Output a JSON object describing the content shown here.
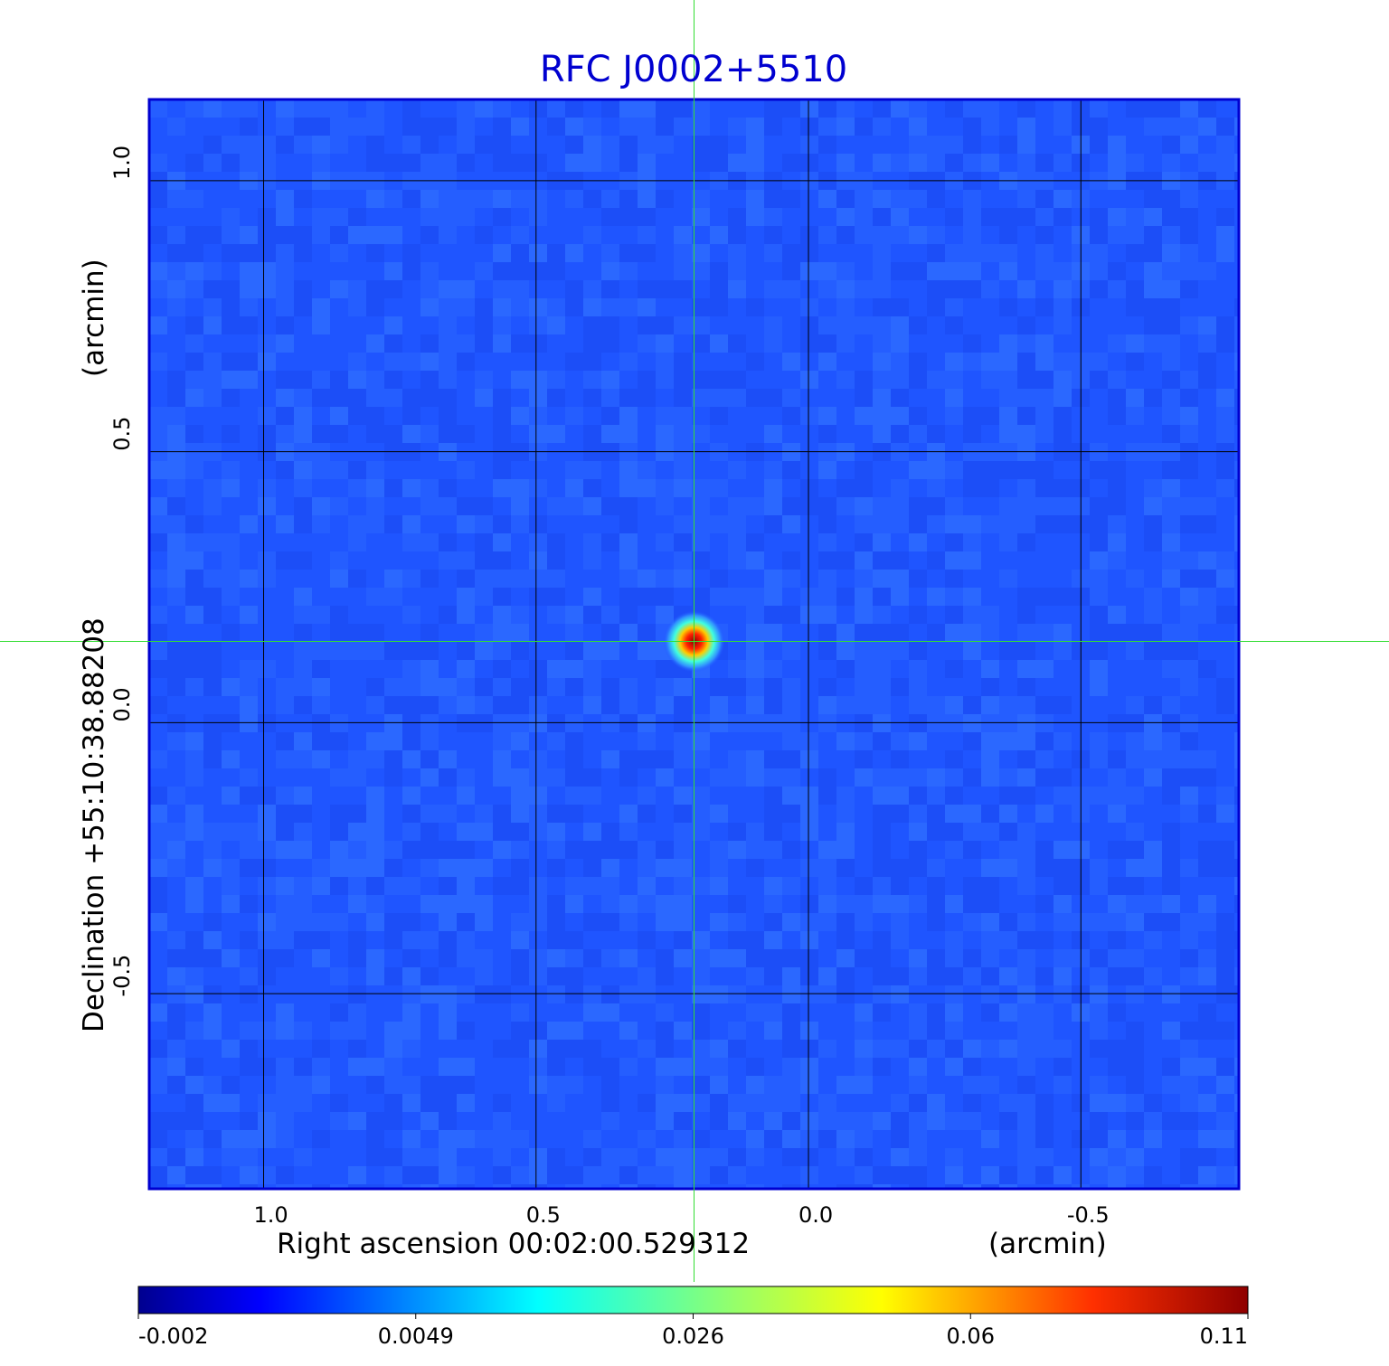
{
  "chart_data": {
    "type": "heatmap",
    "title": "RFC J0002+5510",
    "xlabel": "Right ascension  00:02:00.529312",
    "xunit": "(arcmin)",
    "ylabel": "Declination  +55:10:38.88208",
    "yunit": "(arcmin)",
    "xlim": [
      1.21,
      -0.79
    ],
    "ylim": [
      -0.86,
      1.15
    ],
    "x_ticks": [
      {
        "value": 1.0,
        "label": "1.0"
      },
      {
        "value": 0.5,
        "label": "0.5"
      },
      {
        "value": 0.0,
        "label": "0.0"
      },
      {
        "value": -0.5,
        "label": "-0.5"
      }
    ],
    "y_ticks": [
      {
        "value": 1.0,
        "label": "1.0"
      },
      {
        "value": 0.5,
        "label": "0.5"
      },
      {
        "value": 0.0,
        "label": "0.0"
      },
      {
        "value": -0.5,
        "label": "-0.5"
      }
    ],
    "grid": true,
    "crosshair": {
      "x": 0.21,
      "y": 0.15,
      "color": "#33dd33"
    },
    "source_peak": {
      "x": 0.21,
      "y": 0.15,
      "value": 0.11
    },
    "colorbar": {
      "ticks": [
        "-0.002",
        "0.0049",
        "0.026",
        "0.06",
        "0.11"
      ],
      "colormap": "jet"
    },
    "colors": {
      "title": "#0000d0",
      "frame": "#0000d0",
      "background_field": "#1f55ff"
    }
  }
}
